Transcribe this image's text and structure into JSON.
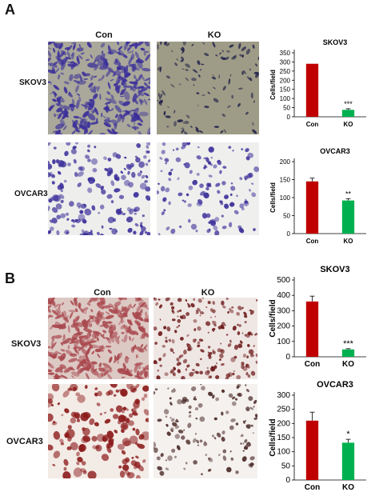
{
  "panel_a": {
    "letter": "A",
    "col_con": "Con",
    "col_ko": "KO",
    "row_1": "SKOV3",
    "row_2": "OVCAR3"
  },
  "panel_b": {
    "letter": "B",
    "col_con": "Con",
    "col_ko": "KO",
    "row_1": "SKOV3",
    "row_2": "OVCAR3"
  },
  "colors": {
    "con": "#c00000",
    "ko": "#00b050",
    "stain_a": "#3b2f9a",
    "stain_b": "#8b1a1a"
  },
  "chart_data": [
    {
      "type": "bar",
      "title": "SKOV3",
      "ylabel": "Cells/field",
      "categories": [
        "Con",
        "KO"
      ],
      "values": [
        290,
        38
      ],
      "errors": [
        0,
        6
      ],
      "sig": [
        "",
        "***"
      ],
      "ylim": [
        0,
        350
      ],
      "yticks": [
        0,
        50,
        100,
        150,
        200,
        250,
        300,
        350
      ],
      "colors": [
        "#c00000",
        "#00b050"
      ],
      "grid": false
    },
    {
      "type": "bar",
      "title": "OVCAR3",
      "ylabel": "Cells/field",
      "categories": [
        "Con",
        "KO"
      ],
      "values": [
        145,
        92
      ],
      "errors": [
        9,
        5
      ],
      "sig": [
        "",
        "**"
      ],
      "ylim": [
        0,
        200
      ],
      "yticks": [
        0,
        50,
        100,
        150,
        200
      ],
      "colors": [
        "#c00000",
        "#00b050"
      ],
      "grid": false
    },
    {
      "type": "bar",
      "title": "SKOV3",
      "ylabel": "Cells/field",
      "categories": [
        "Con",
        "KO"
      ],
      "values": [
        360,
        48
      ],
      "errors": [
        35,
        5
      ],
      "sig": [
        "",
        "***"
      ],
      "ylim": [
        0,
        500
      ],
      "yticks": [
        0,
        100,
        200,
        300,
        400,
        500
      ],
      "colors": [
        "#c00000",
        "#00b050"
      ],
      "grid": false
    },
    {
      "type": "bar",
      "title": "OVCAR3",
      "ylabel": "Cells/field",
      "categories": [
        "Con",
        "KO"
      ],
      "values": [
        210,
        132
      ],
      "errors": [
        30,
        12
      ],
      "sig": [
        "",
        "*"
      ],
      "ylim": [
        0,
        300
      ],
      "yticks": [
        0,
        50,
        100,
        150,
        200,
        250,
        300
      ],
      "colors": [
        "#c00000",
        "#00b050"
      ],
      "grid": false
    }
  ]
}
